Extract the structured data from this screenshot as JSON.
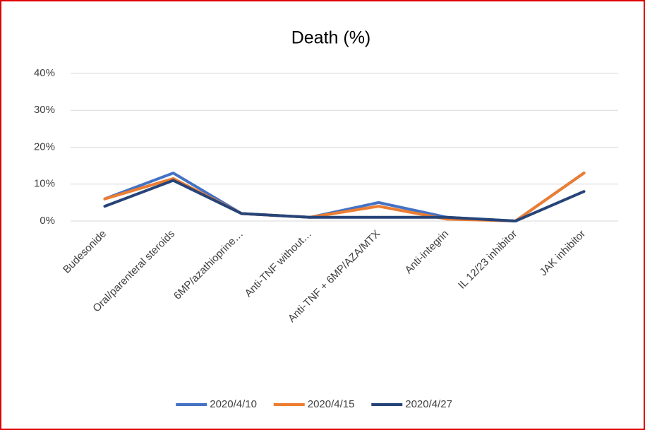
{
  "chart_data": {
    "type": "line",
    "title": "Death (%)",
    "categories": [
      "Budesonide",
      "Oral/parenteral steroids",
      "6MP/azathioprine…",
      "Anti-TNF without…",
      "Anti-TNF + 6MP/AZA/MTX",
      "Anti-integrin",
      "IL 12/23 inhibitor",
      "JAK inhibitor"
    ],
    "series": [
      {
        "name": "2020/4/10",
        "color": "#4472c4",
        "values": [
          6,
          13,
          2,
          1,
          5,
          1,
          0,
          13
        ]
      },
      {
        "name": "2020/4/15",
        "color": "#ed7d31",
        "values": [
          6,
          11.5,
          2,
          1,
          4,
          0.5,
          0,
          13
        ]
      },
      {
        "name": "2020/4/27",
        "color": "#264478",
        "values": [
          4,
          11,
          2,
          1,
          1,
          1,
          0,
          8
        ]
      }
    ],
    "ylim": [
      0,
      40
    ],
    "yticks": [
      {
        "value": 0,
        "label": "0%"
      },
      {
        "value": 10,
        "label": "10%"
      },
      {
        "value": 20,
        "label": "20%"
      },
      {
        "value": 30,
        "label": "30%"
      },
      {
        "value": 40,
        "label": "40%"
      }
    ],
    "grid": true,
    "legend": "bottom"
  }
}
